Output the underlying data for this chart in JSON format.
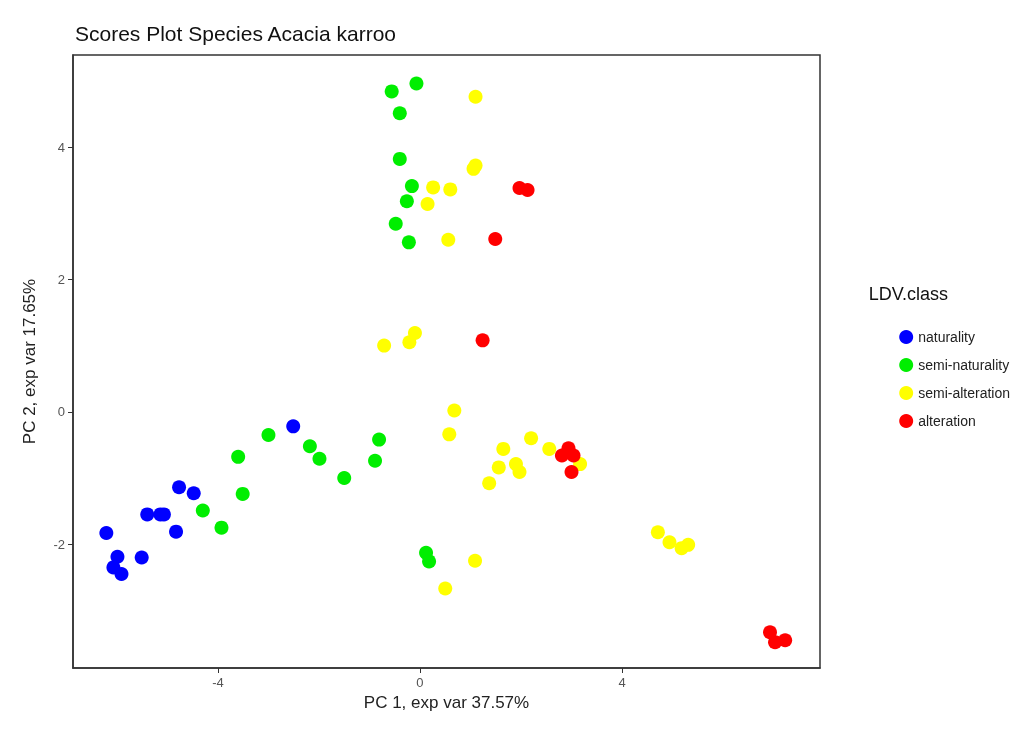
{
  "chart_data": {
    "type": "scatter",
    "title": "Scores Plot Species Acacia karroo",
    "xlabel": "PC 1, exp var 37.57%",
    "ylabel": "PC 2, exp var 17.65%",
    "legend_title": "LDV.class",
    "legend": "right",
    "grid": false,
    "marker": "circle",
    "xlim": [
      -6.87,
      7.92
    ],
    "ylim": [
      -3.87,
      5.39
    ],
    "xticks": [
      -4,
      0,
      4
    ],
    "yticks": [
      -2,
      0,
      2,
      4
    ],
    "series": [
      {
        "name": "naturality",
        "color": "#0000ff",
        "x": [
          -6.21,
          -5.99,
          -6.07,
          -5.91,
          -5.51,
          -5.4,
          -5.14,
          -5.07,
          -4.83,
          -4.77,
          -4.48,
          -2.51
        ],
        "values": [
          -1.83,
          -2.19,
          -2.35,
          -2.45,
          -2.2,
          -1.55,
          -1.55,
          -1.55,
          -1.81,
          -1.14,
          -1.23,
          -0.22
        ]
      },
      {
        "name": "semi-naturality",
        "color": "#00ee00",
        "x": [
          -4.3,
          -3.93,
          -3.6,
          -3.51,
          -3.0,
          -2.18,
          -1.99,
          -1.5,
          -0.89,
          -0.81,
          0.12,
          0.18,
          -0.56,
          -0.07,
          -0.4,
          -0.4,
          -0.16,
          -0.26,
          -0.48,
          -0.22
        ],
        "values": [
          -1.49,
          -1.75,
          -0.68,
          -1.24,
          -0.35,
          -0.52,
          -0.71,
          -1.0,
          -0.74,
          -0.42,
          -2.13,
          -2.26,
          4.84,
          4.96,
          4.51,
          3.82,
          3.41,
          3.18,
          2.84,
          2.56
        ]
      },
      {
        "name": "semi-alteration",
        "color": "#ffff00",
        "x": [
          1.1,
          1.06,
          1.1,
          0.26,
          0.6,
          0.15,
          0.56,
          -0.71,
          -0.21,
          -0.1,
          0.68,
          0.58,
          1.65,
          2.2,
          2.56,
          1.56,
          1.9,
          1.97,
          1.37,
          3.17,
          4.71,
          4.94,
          5.18,
          5.31,
          1.09,
          0.5
        ],
        "values": [
          4.76,
          3.67,
          3.72,
          3.39,
          3.36,
          3.14,
          2.6,
          1.0,
          1.05,
          1.19,
          0.02,
          -0.34,
          -0.56,
          -0.4,
          -0.56,
          -0.84,
          -0.79,
          -0.91,
          -1.08,
          -0.79,
          -1.82,
          -1.97,
          -2.06,
          -2.01,
          -2.25,
          -2.67
        ]
      },
      {
        "name": "alteration",
        "color": "#ff0000",
        "x": [
          1.97,
          2.13,
          1.49,
          1.24,
          2.94,
          2.81,
          3.04,
          3.0,
          6.93,
          7.03,
          7.23
        ],
        "values": [
          3.38,
          3.35,
          2.61,
          1.08,
          -0.55,
          -0.66,
          -0.66,
          -0.91,
          -3.33,
          -3.48,
          -3.45
        ]
      }
    ]
  }
}
